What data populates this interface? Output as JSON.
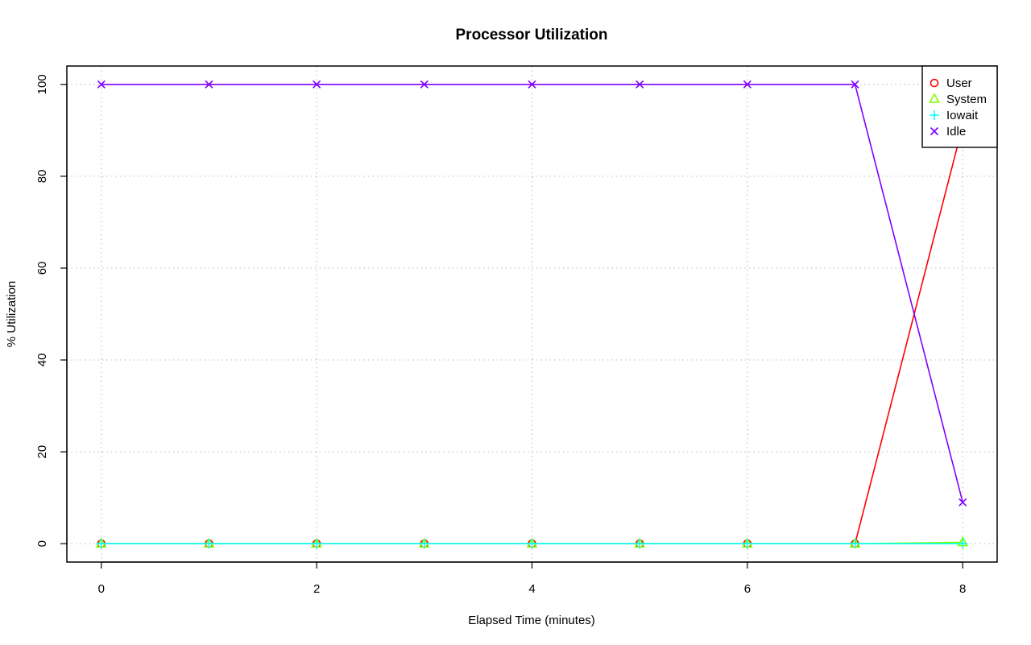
{
  "chart_data": {
    "type": "line",
    "title": "Processor Utilization",
    "xlabel": "Elapsed Time (minutes)",
    "ylabel": "% Utilization",
    "x": [
      0,
      1,
      2,
      3,
      4,
      5,
      6,
      7,
      8
    ],
    "xlim": [
      -0.32,
      8.32
    ],
    "ylim": [
      -4,
      104
    ],
    "xticks": [
      0,
      2,
      4,
      6,
      8
    ],
    "yticks": [
      0,
      20,
      40,
      60,
      80,
      100
    ],
    "grid": true,
    "legend_position": "top-right",
    "series": [
      {
        "name": "User",
        "marker": "circle",
        "color": "#ff0000",
        "values": [
          0,
          0,
          0,
          0,
          0,
          0,
          0,
          0,
          91
        ]
      },
      {
        "name": "System",
        "marker": "triangle",
        "color": "#80ff00",
        "values": [
          0,
          0,
          0,
          0,
          0,
          0,
          0,
          0,
          0.3
        ]
      },
      {
        "name": "Iowait",
        "marker": "plus",
        "color": "#00ffff",
        "values": [
          0,
          0,
          0,
          0,
          0,
          0,
          0,
          0,
          0
        ]
      },
      {
        "name": "Idle",
        "marker": "cross",
        "color": "#8000ff",
        "values": [
          100,
          100,
          100,
          100,
          100,
          100,
          100,
          100,
          9
        ]
      }
    ]
  }
}
